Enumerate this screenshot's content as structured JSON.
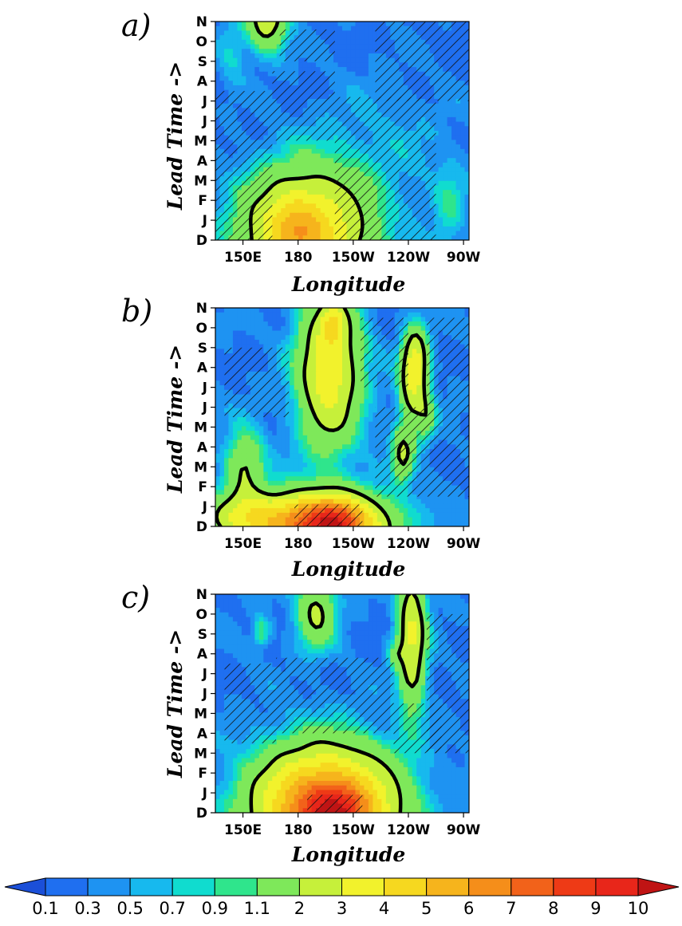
{
  "chart_data": {
    "type": "heatmap",
    "shared": {
      "ylabel": "Lead Time ->",
      "xlabel": "Longitude",
      "y_ticks": [
        "D",
        "J",
        "F",
        "M",
        "A",
        "M",
        "J",
        "J",
        "A",
        "S",
        "O",
        "N"
      ],
      "x_ticks": [
        "150E",
        "180",
        "150W",
        "120W",
        "90W"
      ],
      "x_range_deg_east": [
        135,
        273
      ],
      "x_tick_values_deg_east": [
        150,
        180,
        210,
        240,
        270
      ],
      "colorbar": {
        "levels": [
          "0.1",
          "0.3",
          "0.5",
          "0.7",
          "0.9",
          "1.1",
          "2",
          "3",
          "4",
          "5",
          "6",
          "7",
          "8",
          "9",
          "10"
        ],
        "colors": [
          "#1b4fd8",
          "#1f6ff0",
          "#1e93f2",
          "#17b9ee",
          "#10dccf",
          "#2fe58c",
          "#7ee85a",
          "#c6f03a",
          "#f2f22c",
          "#f6d81f",
          "#f6b41c",
          "#f58e1a",
          "#f2621a",
          "#ee3a16",
          "#e8261a",
          "#c01414"
        ],
        "extend": "both"
      },
      "contour_level": "2",
      "hatching": "significance"
    },
    "panels": [
      {
        "label": "a)",
        "base_value": 0.25,
        "blobs": [
          {
            "lon": 184,
            "lead": 0.2,
            "sx": 22,
            "sy": 2.1,
            "amp": 4.6
          },
          {
            "lon": 178,
            "lead": 0.6,
            "sx": 9,
            "sy": 1.0,
            "amp": 1.4
          },
          {
            "lon": 163,
            "lead": 11.2,
            "sx": 7,
            "sy": 1.1,
            "amp": 2.6
          },
          {
            "lon": 144,
            "lead": 9.5,
            "sx": 5,
            "sy": 1.3,
            "amp": 0.5
          },
          {
            "lon": 262,
            "lead": 1.5,
            "sx": 6,
            "sy": 1.5,
            "amp": 0.6
          },
          {
            "lon": 225,
            "lead": 4.5,
            "sx": 30,
            "sy": 2.5,
            "amp": 0.3
          }
        ],
        "hatch_regions": [
          {
            "x": [
              135,
              166
            ],
            "y": [
              0,
              7.5
            ]
          },
          {
            "x": [
              166,
              200
            ],
            "y": [
              5.0,
              8.5
            ]
          },
          {
            "x": [
              200,
              255
            ],
            "y": [
              0,
              7.2
            ]
          },
          {
            "x": [
              222,
              273
            ],
            "y": [
              7.0,
              11.5
            ]
          },
          {
            "x": [
              170,
              200
            ],
            "y": [
              9.0,
              10.6
            ]
          }
        ]
      },
      {
        "label": "b)",
        "base_value": 0.3,
        "blobs": [
          {
            "lon": 192,
            "lead": 0.1,
            "sx": 22,
            "sy": 1.0,
            "amp": 7.8
          },
          {
            "lon": 200,
            "lead": 0.1,
            "sx": 9,
            "sy": 0.7,
            "amp": 3.0
          },
          {
            "lon": 150,
            "lead": 0.5,
            "sx": 14,
            "sy": 0.8,
            "amp": 2.2
          },
          {
            "lon": 151,
            "lead": 3.0,
            "sx": 7,
            "sy": 1.2,
            "amp": 1.8
          },
          {
            "lon": 197,
            "lead": 7.9,
            "sx": 11,
            "sy": 2.6,
            "amp": 3.4
          },
          {
            "lon": 199,
            "lead": 10.1,
            "sx": 4,
            "sy": 0.6,
            "amp": 2.5
          },
          {
            "lon": 243,
            "lead": 7.2,
            "sx": 5,
            "sy": 1.4,
            "amp": 2.8
          },
          {
            "lon": 244,
            "lead": 8.8,
            "sx": 4,
            "sy": 0.9,
            "amp": 1.6
          },
          {
            "lon": 237,
            "lead": 3.6,
            "sx": 4,
            "sy": 0.9,
            "amp": 1.9
          },
          {
            "lon": 250,
            "lead": 5.4,
            "sx": 3,
            "sy": 0.8,
            "amp": 1.0
          }
        ],
        "hatch_regions": [
          {
            "x": [
              140,
              175
            ],
            "y": [
              5.5,
              9.0
            ]
          },
          {
            "x": [
              214,
              240
            ],
            "y": [
              7.0,
              10.5
            ]
          },
          {
            "x": [
              222,
              273
            ],
            "y": [
              1.5,
              6.0
            ]
          },
          {
            "x": [
              250,
              273
            ],
            "y": [
              6.0,
              10.5
            ]
          },
          {
            "x": [
              178,
              215
            ],
            "y": [
              0,
              1.1
            ]
          }
        ]
      },
      {
        "label": "c)",
        "base_value": 0.3,
        "blobs": [
          {
            "lon": 195,
            "lead": 0.2,
            "sx": 24,
            "sy": 1.9,
            "amp": 7.4
          },
          {
            "lon": 200,
            "lead": 0.1,
            "sx": 11,
            "sy": 0.8,
            "amp": 3.5
          },
          {
            "lon": 190,
            "lead": 10.1,
            "sx": 7,
            "sy": 1.2,
            "amp": 1.9
          },
          {
            "lon": 242,
            "lead": 8.8,
            "sx": 5,
            "sy": 2.4,
            "amp": 2.9
          },
          {
            "lon": 160,
            "lead": 9.1,
            "sx": 3,
            "sy": 0.5,
            "amp": 1.0
          },
          {
            "lon": 233,
            "lead": 8.0,
            "sx": 2.5,
            "sy": 0.4,
            "amp": 0.9
          }
        ],
        "hatch_regions": [
          {
            "x": [
              140,
              168
            ],
            "y": [
              3.5,
              7.5
            ]
          },
          {
            "x": [
              168,
              232
            ],
            "y": [
              4.0,
              7.8
            ]
          },
          {
            "x": [
              250,
              273
            ],
            "y": [
              3.0,
              10.0
            ]
          },
          {
            "x": [
              232,
              258
            ],
            "y": [
              3.0,
              5.5
            ]
          },
          {
            "x": [
              185,
              215
            ],
            "y": [
              0,
              0.9
            ]
          }
        ]
      }
    ]
  }
}
